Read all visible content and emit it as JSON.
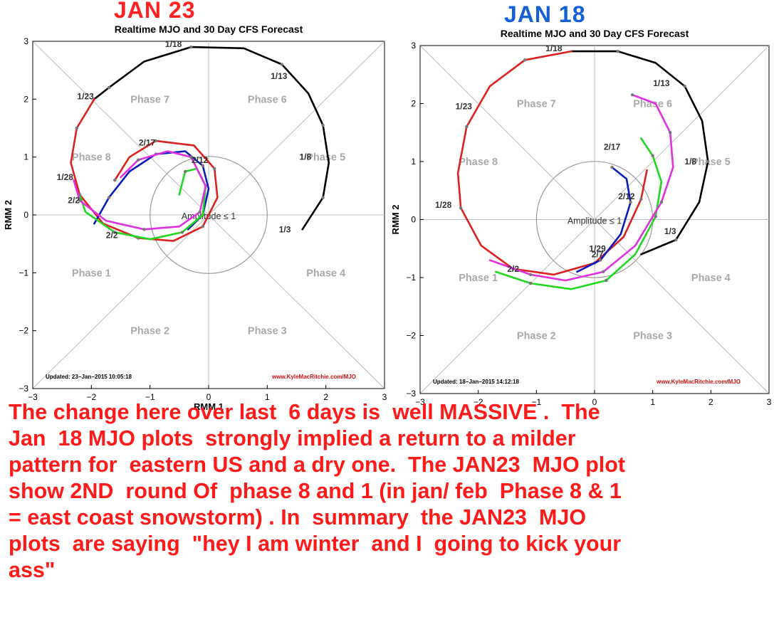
{
  "stamps": {
    "left": "JAN   23",
    "right": "JAN  18"
  },
  "caption": "The change here over last  6 days is  well MASSIVE .  The\nJan  18 MJO plots  strongly implied a return to a milder\npattern for  eastern US and a dry one.  The JAN23  MJO plot\nshow 2ND  round Of  phase 8 and 1 (in jan/ feb  Phase 8 & 1\n= east coast snowstorm) . In  summary  the JAN23  MJO\nplots  are saying  \"hey I am winter  and I  going to kick your\nass\"",
  "chart_data": [
    {
      "type": "line",
      "title": "Realtime MJO and 30 Day CFS Forecast",
      "xlabel": "RMM 1",
      "ylabel": "RMM 2",
      "xlim": [
        -3,
        3
      ],
      "ylim": [
        -3,
        3
      ],
      "ticks": [
        "−3",
        "−2",
        "−1",
        "0",
        "1",
        "2",
        "3"
      ],
      "phases": [
        "Phase 1",
        "Phase 2",
        "Phase 3",
        "Phase 4",
        "Phase 5",
        "Phase 6",
        "Phase 7",
        "Phase 8"
      ],
      "amplitude_label": "Amplitude ≤ 1",
      "updated": "Updated: 23−Jan−2015 10:05:18",
      "credit": "www.KyleMacRitchie.com/MJO",
      "date_labels": [
        {
          "text": "1/18",
          "x": -0.6,
          "y": 2.9
        },
        {
          "text": "1/13",
          "x": 1.2,
          "y": 2.35
        },
        {
          "text": "1/23",
          "x": -2.1,
          "y": 2.0
        },
        {
          "text": "1/8",
          "x": 1.65,
          "y": 0.95
        },
        {
          "text": "1/28",
          "x": -2.45,
          "y": 0.6
        },
        {
          "text": "2/17",
          "x": -1.05,
          "y": 1.2
        },
        {
          "text": "2/12",
          "x": -0.15,
          "y": 0.9
        },
        {
          "text": "2/2",
          "x": -2.3,
          "y": 0.2
        },
        {
          "text": "2/2",
          "x": -1.65,
          "y": -0.4
        },
        {
          "text": "1/3",
          "x": 1.3,
          "y": -0.3
        }
      ],
      "series": [
        {
          "color": "#000000",
          "values": [
            [
              1.6,
              -0.25
            ],
            [
              1.95,
              0.3
            ],
            [
              2.05,
              0.9
            ],
            [
              1.95,
              1.55
            ],
            [
              1.7,
              2.1
            ],
            [
              1.25,
              2.6
            ],
            [
              0.6,
              2.88
            ],
            [
              -0.3,
              2.9
            ],
            [
              -1.1,
              2.65
            ],
            [
              -1.7,
              2.2
            ],
            [
              -1.95,
              2.0
            ]
          ]
        },
        {
          "color": "#dd2020",
          "values": [
            [
              -1.95,
              2.0
            ],
            [
              -2.25,
              1.5
            ],
            [
              -2.35,
              0.9
            ],
            [
              -2.2,
              0.35
            ],
            [
              -1.8,
              -0.15
            ],
            [
              -1.2,
              -0.4
            ],
            [
              -0.6,
              -0.45
            ],
            [
              -0.1,
              -0.2
            ],
            [
              0.15,
              0.3
            ],
            [
              0.1,
              0.8
            ],
            [
              -0.25,
              1.2
            ],
            [
              -0.9,
              1.28
            ],
            [
              -1.35,
              1.0
            ],
            [
              -1.6,
              0.6
            ]
          ]
        },
        {
          "color": "#0a1cc0",
          "values": [
            [
              -1.95,
              -0.15
            ],
            [
              -1.7,
              0.3
            ],
            [
              -1.35,
              0.75
            ],
            [
              -0.9,
              1.05
            ],
            [
              -0.4,
              1.1
            ],
            [
              -0.1,
              0.85
            ],
            [
              0.0,
              0.45
            ],
            [
              -0.1,
              0.0
            ],
            [
              -0.35,
              -0.25
            ]
          ]
        },
        {
          "color": "#20d820",
          "values": [
            [
              -0.5,
              0.35
            ],
            [
              -0.4,
              0.75
            ],
            [
              -0.2,
              0.8
            ],
            [
              -0.05,
              0.5
            ],
            [
              -0.1,
              0.0
            ],
            [
              -0.45,
              -0.3
            ],
            [
              -1.0,
              -0.42
            ],
            [
              -1.6,
              -0.3
            ],
            [
              -2.1,
              0.05
            ],
            [
              -2.2,
              0.35
            ]
          ]
        },
        {
          "color": "#e030e0",
          "values": [
            [
              -1.5,
              0.65
            ],
            [
              -1.2,
              0.95
            ],
            [
              -0.7,
              1.1
            ],
            [
              -0.3,
              1.0
            ],
            [
              -0.05,
              0.5
            ],
            [
              -0.15,
              0.05
            ],
            [
              -0.5,
              -0.2
            ],
            [
              -1.1,
              -0.25
            ],
            [
              -1.75,
              -0.1
            ],
            [
              -2.2,
              0.25
            ],
            [
              -2.3,
              0.6
            ]
          ]
        }
      ]
    },
    {
      "type": "line",
      "title": "Realtime MJO and 30 Day CFS Forecast",
      "xlabel": "",
      "ylabel": "RMM 2",
      "xlim": [
        -3,
        3
      ],
      "ylim": [
        -3,
        3
      ],
      "ticks": [
        "−3",
        "−2",
        "−1",
        "0",
        "1",
        "2",
        "3"
      ],
      "phases": [
        "Phase 1",
        "Phase 2",
        "Phase 3",
        "Phase 4",
        "Phase 5",
        "Phase 6",
        "Phase 7",
        "Phase 8"
      ],
      "amplitude_label": "Amplitude ≤ 1",
      "updated": "Updated: 18−Jan−2015 14:12:18",
      "credit": "www.KyleMacRitchie.com/MJO",
      "date_labels": [
        {
          "text": "1/18",
          "x": -0.7,
          "y": 2.9
        },
        {
          "text": "1/13",
          "x": 1.15,
          "y": 2.3
        },
        {
          "text": "1/23",
          "x": -2.25,
          "y": 1.9
        },
        {
          "text": "2/17",
          "x": 0.3,
          "y": 1.2
        },
        {
          "text": "1/8",
          "x": 1.65,
          "y": 0.95
        },
        {
          "text": "2/12",
          "x": 0.55,
          "y": 0.35
        },
        {
          "text": "1/28",
          "x": -2.6,
          "y": 0.2
        },
        {
          "text": "1/3",
          "x": 1.3,
          "y": -0.25
        },
        {
          "text": "1/29",
          "x": 0.05,
          "y": -0.55
        },
        {
          "text": "2/7",
          "x": 0.05,
          "y": -0.65
        },
        {
          "text": "2/2",
          "x": -1.4,
          "y": -0.9
        }
      ],
      "series": [
        {
          "color": "#000000",
          "values": [
            [
              0.8,
              -0.6
            ],
            [
              1.4,
              -0.35
            ],
            [
              1.8,
              0.3
            ],
            [
              1.95,
              1.0
            ],
            [
              1.85,
              1.7
            ],
            [
              1.55,
              2.3
            ],
            [
              1.05,
              2.7
            ],
            [
              0.4,
              2.9
            ],
            [
              -0.4,
              2.9
            ]
          ]
        },
        {
          "color": "#dd2020",
          "values": [
            [
              -0.4,
              2.9
            ],
            [
              -1.2,
              2.75
            ],
            [
              -1.8,
              2.3
            ],
            [
              -2.2,
              1.6
            ],
            [
              -2.35,
              0.8
            ],
            [
              -2.3,
              0.2
            ],
            [
              -1.95,
              -0.45
            ],
            [
              -1.4,
              -0.85
            ],
            [
              -0.7,
              -0.95
            ],
            [
              0.0,
              -0.75
            ],
            [
              0.5,
              -0.3
            ],
            [
              0.8,
              0.35
            ],
            [
              0.9,
              0.85
            ]
          ]
        },
        {
          "color": "#0a1cc0",
          "values": [
            [
              -0.3,
              -0.9
            ],
            [
              0.1,
              -0.7
            ],
            [
              0.45,
              -0.25
            ],
            [
              0.62,
              0.3
            ],
            [
              0.55,
              0.7
            ],
            [
              0.3,
              0.9
            ]
          ]
        },
        {
          "color": "#20d820",
          "values": [
            [
              -1.7,
              -0.9
            ],
            [
              -1.1,
              -1.1
            ],
            [
              -0.4,
              -1.2
            ],
            [
              0.2,
              -1.05
            ],
            [
              0.7,
              -0.6
            ],
            [
              1.05,
              0.05
            ],
            [
              1.15,
              0.65
            ],
            [
              1.0,
              1.1
            ],
            [
              0.8,
              1.4
            ]
          ]
        },
        {
          "color": "#e030e0",
          "values": [
            [
              -1.8,
              -0.7
            ],
            [
              -1.1,
              -0.95
            ],
            [
              -0.5,
              -1.05
            ],
            [
              0.15,
              -0.9
            ],
            [
              0.7,
              -0.45
            ],
            [
              1.15,
              0.3
            ],
            [
              1.35,
              0.9
            ],
            [
              1.3,
              1.5
            ],
            [
              1.05,
              2.0
            ],
            [
              0.65,
              2.15
            ]
          ]
        }
      ]
    }
  ]
}
